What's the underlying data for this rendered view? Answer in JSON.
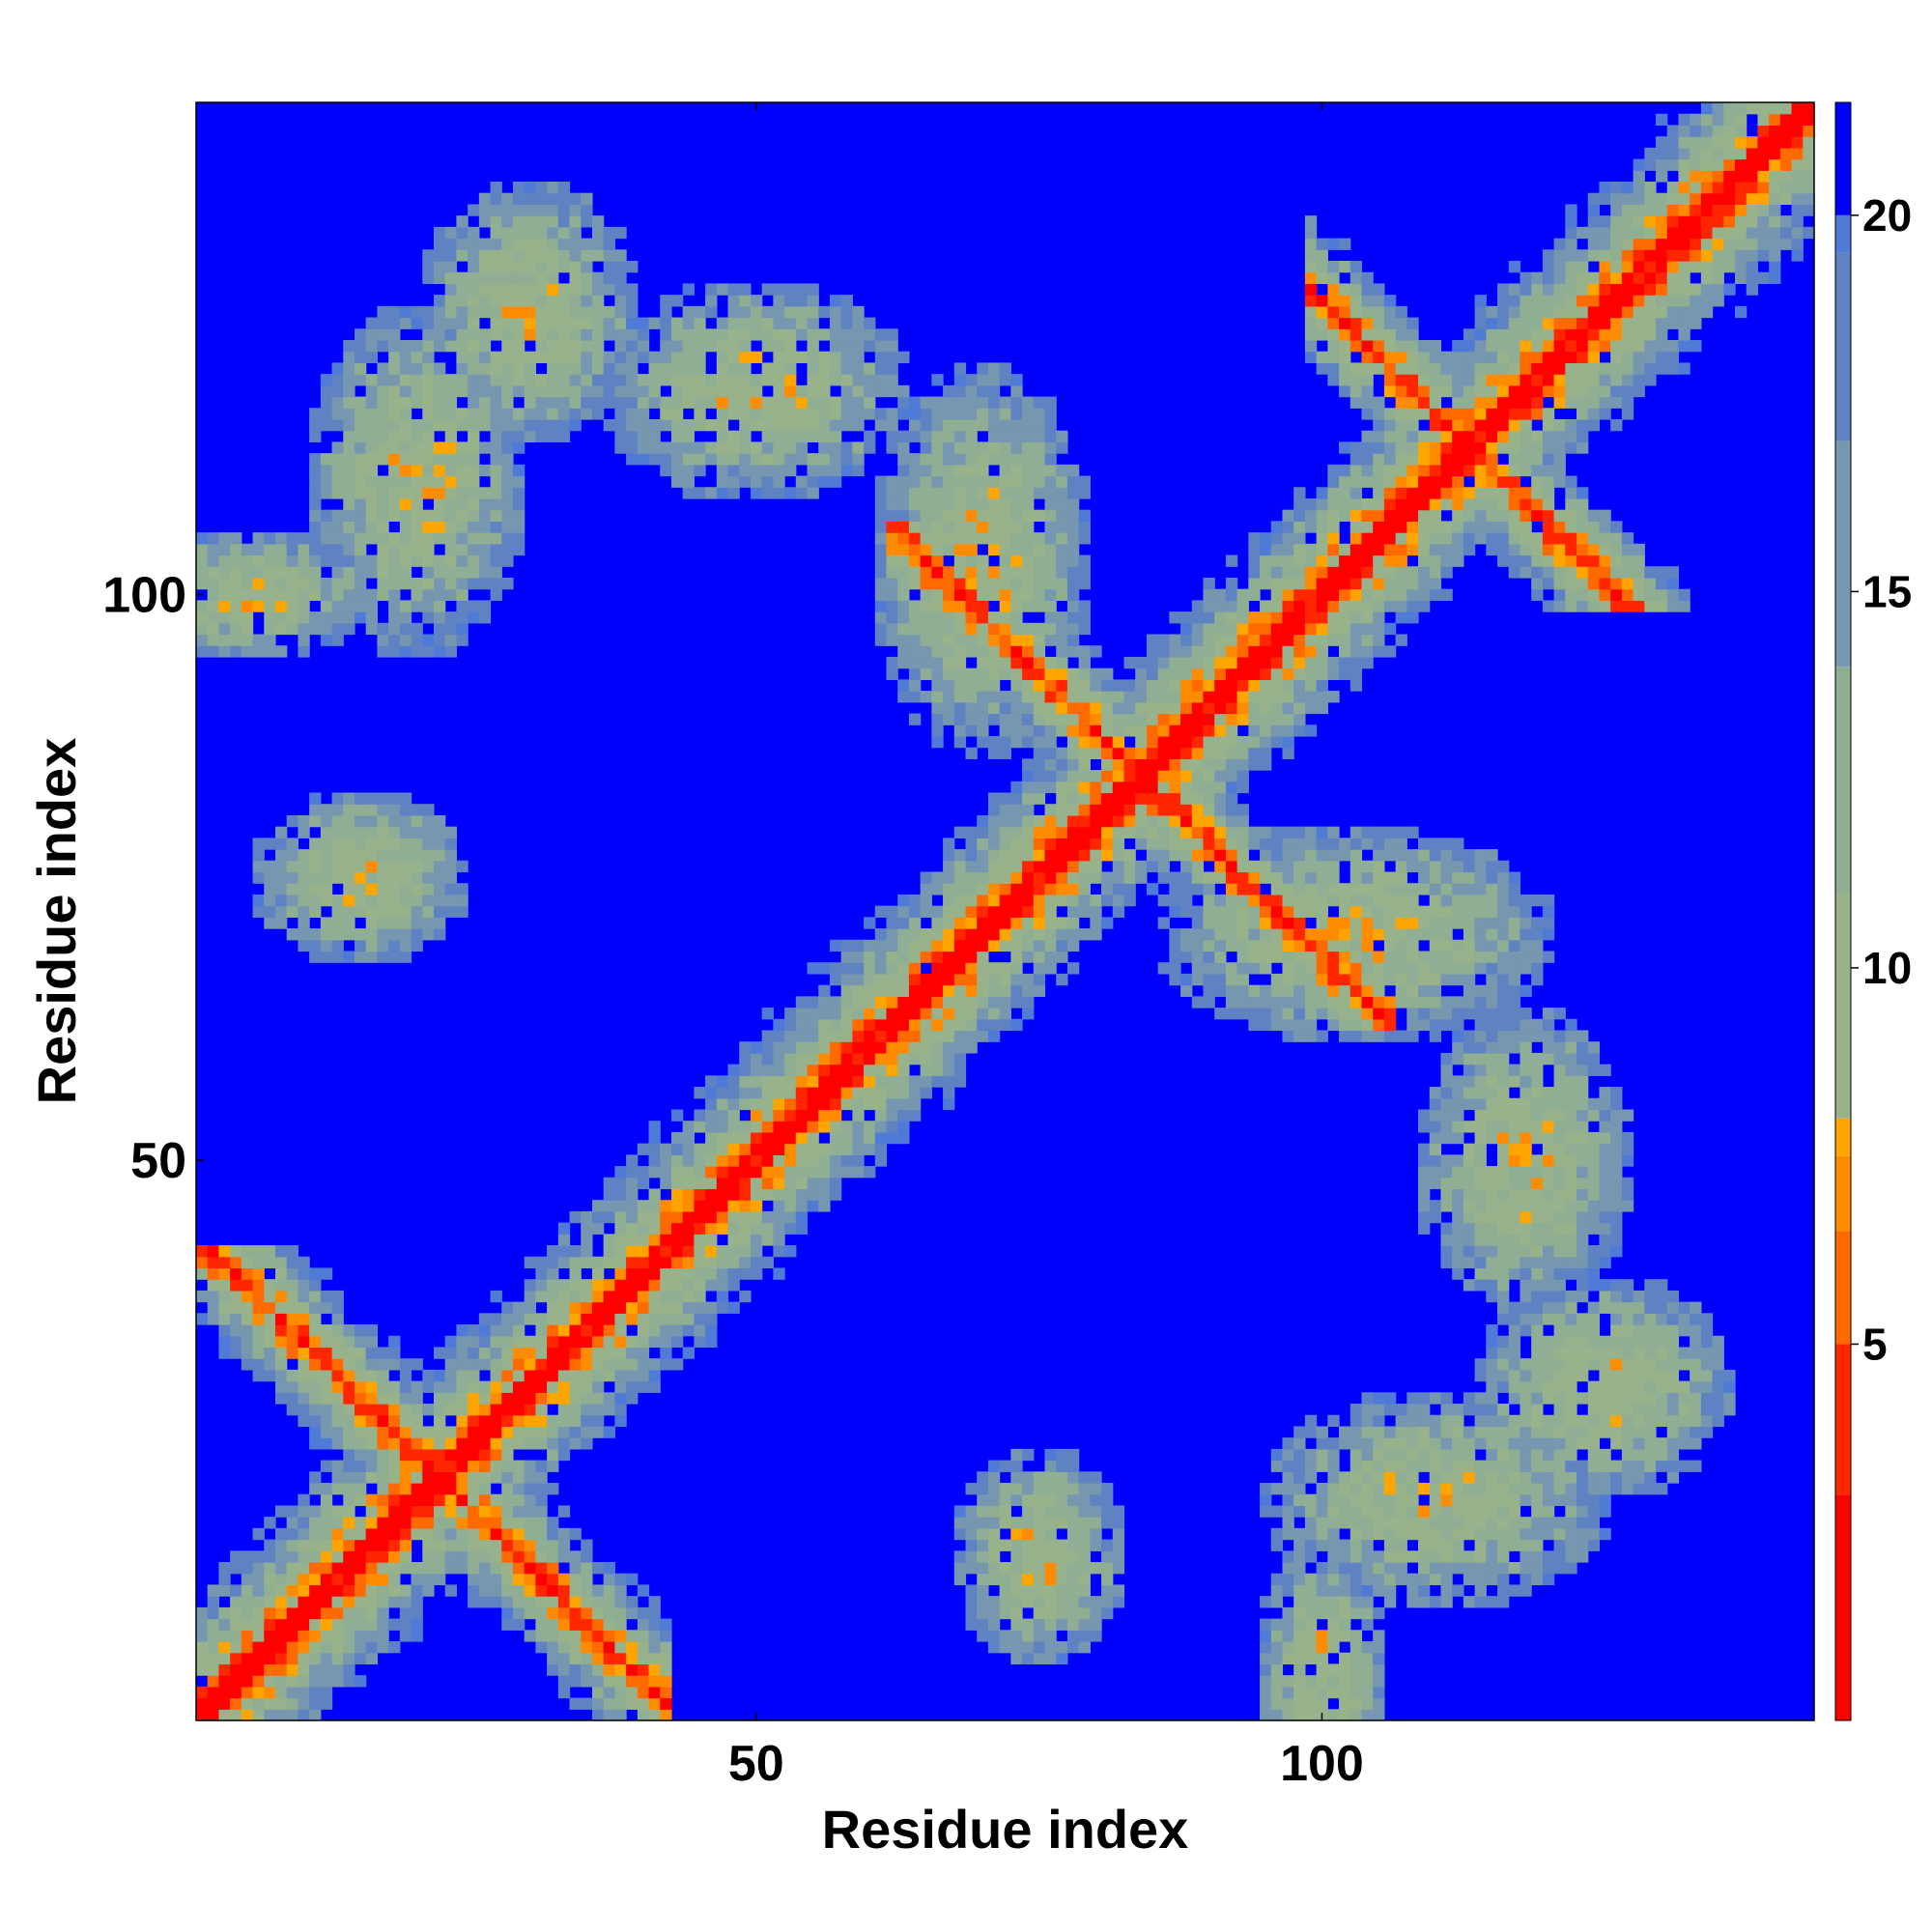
{
  "chart_data": {
    "type": "heatmap",
    "title": "",
    "xlabel": "Residue index",
    "ylabel": "Residue index",
    "n_residues": 143,
    "xlim": [
      1,
      143
    ],
    "ylim": [
      1,
      143
    ],
    "x_ticks": [
      50,
      100
    ],
    "y_ticks": [
      50,
      100
    ],
    "x_tick_labels": [
      "50",
      "100"
    ],
    "y_tick_labels": [
      "50",
      "100"
    ],
    "colorbar": {
      "range": [
        0,
        21.5
      ],
      "ticks": [
        5,
        10,
        15,
        20
      ],
      "tick_labels": [
        "5",
        "10",
        "15",
        "20"
      ],
      "stops": [
        {
          "value": 0,
          "color": "#ff0000"
        },
        {
          "value": 3,
          "color": "#ff2600"
        },
        {
          "value": 5,
          "color": "#ff6a00"
        },
        {
          "value": 6.5,
          "color": "#ff8c00"
        },
        {
          "value": 7.5,
          "color": "#ffa500"
        },
        {
          "value": 8,
          "color": "#98b38b"
        },
        {
          "value": 11,
          "color": "#8fae94"
        },
        {
          "value": 14,
          "color": "#7797b0"
        },
        {
          "value": 17,
          "color": "#5f82c2"
        },
        {
          "value": 19.5,
          "color": "#4f7bd6"
        },
        {
          "value": 20,
          "color": "#0000ff"
        }
      ]
    },
    "background_color": "#0000ff",
    "grid": false,
    "features": [
      {
        "kind": "diagonal",
        "description": "main diagonal contact band"
      },
      {
        "kind": "antiparallel",
        "i_range": [
          1,
          42
        ],
        "j_range": [
          1,
          42
        ],
        "center": [
          22,
          22
        ]
      },
      {
        "kind": "antiparallel",
        "i_range": [
          55,
          105
        ],
        "j_range": [
          55,
          105
        ],
        "center": [
          83,
          83
        ]
      },
      {
        "kind": "antiparallel",
        "i_range": [
          100,
          143
        ],
        "j_range": [
          100,
          143
        ],
        "center": [
          112,
          112
        ]
      },
      {
        "kind": "sheet",
        "i_range": [
          65,
          80
        ],
        "j_range": [
          90,
          120
        ]
      },
      {
        "kind": "sheet",
        "i_range": [
          100,
          120
        ],
        "j_range": [
          60,
          85
        ]
      }
    ]
  }
}
